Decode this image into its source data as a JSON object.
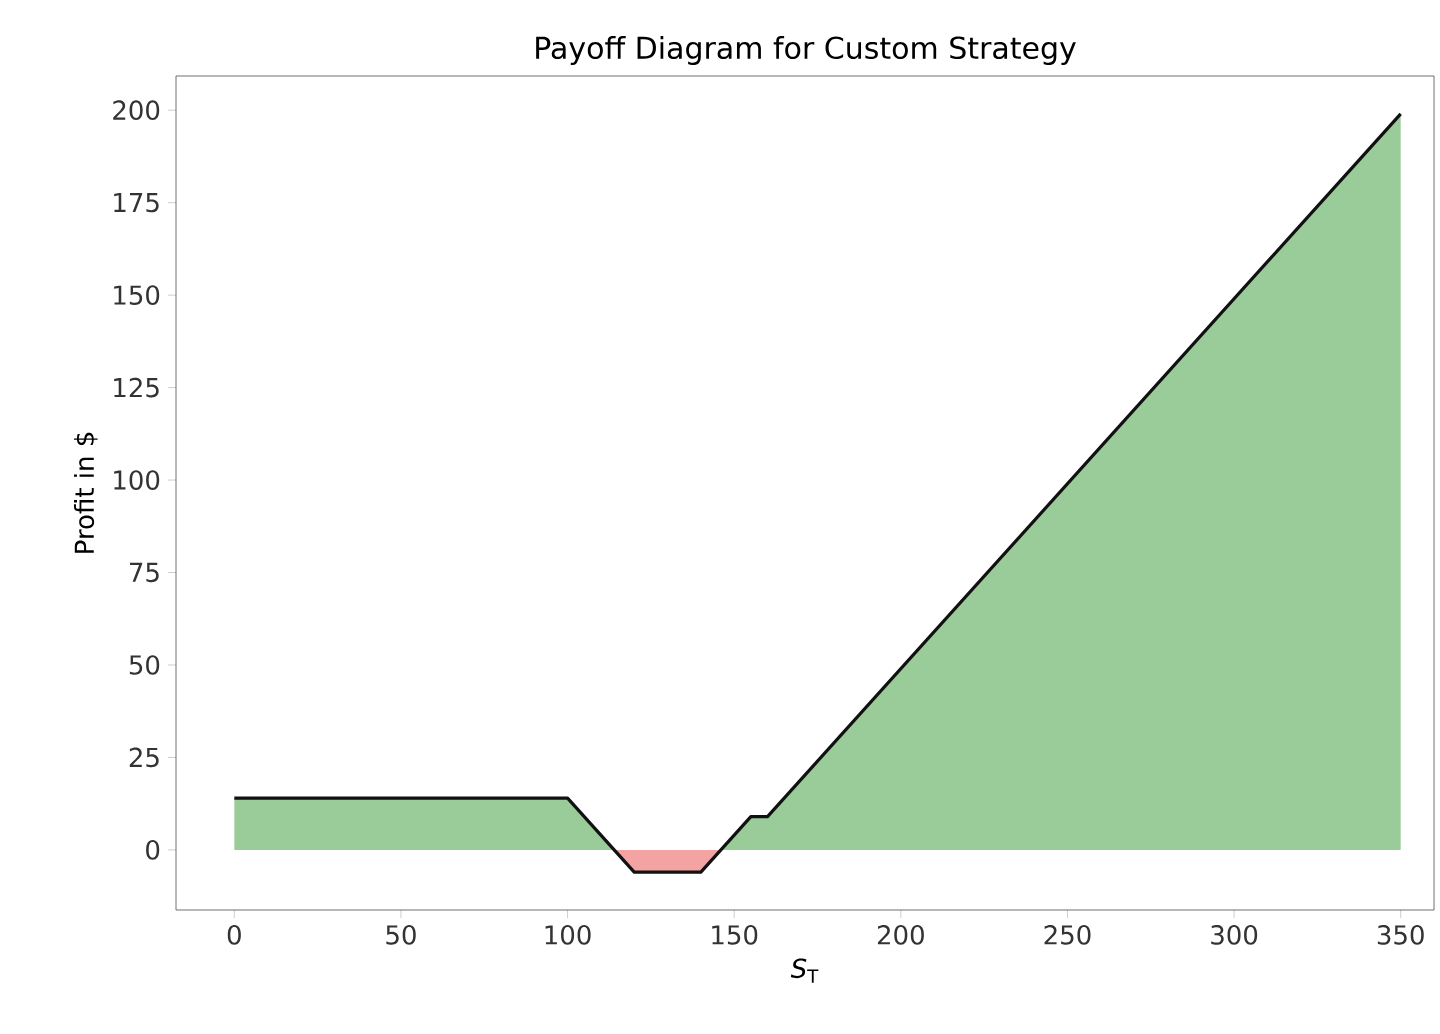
{
  "chart_data": {
    "type": "area",
    "title": "Payoff Diagram for Custom Strategy",
    "xlabel": "*S*$_{T}$",
    "ylabel": "Profit in $",
    "series": [
      {
        "color": "#99cc99",
        "x": [
          0,
          100,
          114,
          146,
          155,
          160,
          350
        ],
        "values": [
          14,
          14,
          0,
          0,
          9,
          9,
          199
        ]
      },
      {
        "color": "#f4a3a3",
        "x": [
          114,
          120,
          140,
          146
        ],
        "values": [
          0,
          -6,
          -6,
          0
        ]
      },
      {
        "type": "line",
        "color": "#111111",
        "x": [
          0,
          100,
          120,
          140,
          155,
          160,
          350
        ],
        "values": [
          14,
          14,
          -6,
          -6,
          9,
          9,
          199
        ]
      }
    ],
    "xlim": [
      -17.5,
      360
    ],
    "ylim": [
      -16.25,
      209.25
    ],
    "xticks": [
      0,
      50,
      100,
      150,
      200,
      250,
      300,
      350
    ],
    "yticks": [
      0,
      25,
      50,
      75,
      100,
      125,
      150,
      175,
      200
    ],
    "grid": false
  }
}
